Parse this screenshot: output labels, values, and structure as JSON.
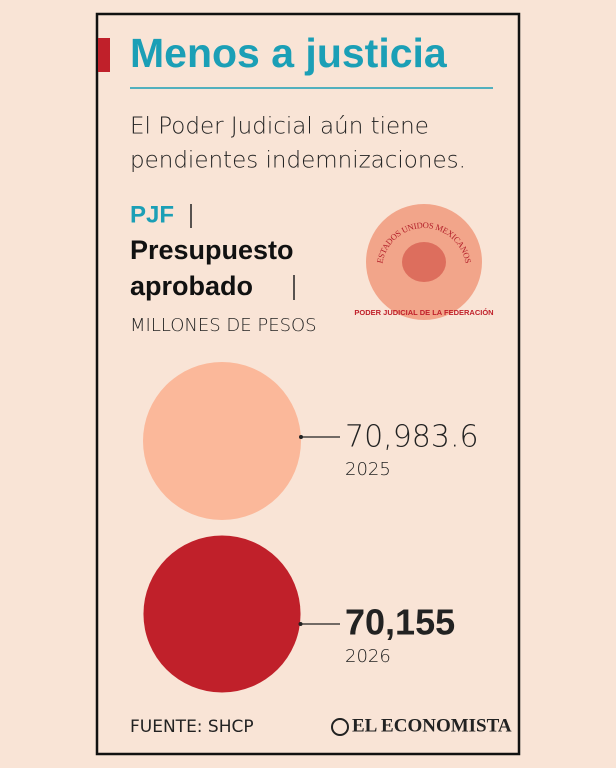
{
  "header": {
    "title": "Menos a justicia",
    "subtitle_lines": [
      "El Poder Judicial aún tiene",
      "pendientes indemnizaciones."
    ]
  },
  "chart_data": {
    "type": "circle",
    "label_lines": [
      "PJF",
      "Presupuesto",
      "aprobado"
    ],
    "unit": "MILLONES DE PESOS",
    "categories": [
      "2025",
      "2026"
    ],
    "values": [
      70983.6,
      70155
    ],
    "value_labels": [
      "70,983.6",
      "70,155"
    ],
    "colors": [
      "#fbb89a",
      "#c0202a"
    ]
  },
  "seal": {
    "arc_text": "ESTADOS UNIDOS MEXICANOS",
    "caption": "PODER JUDICIAL DE LA FEDERACIÓN"
  },
  "footer": {
    "source": "FUENTE: SHCP",
    "logo": "EL ECONOMISTA"
  }
}
